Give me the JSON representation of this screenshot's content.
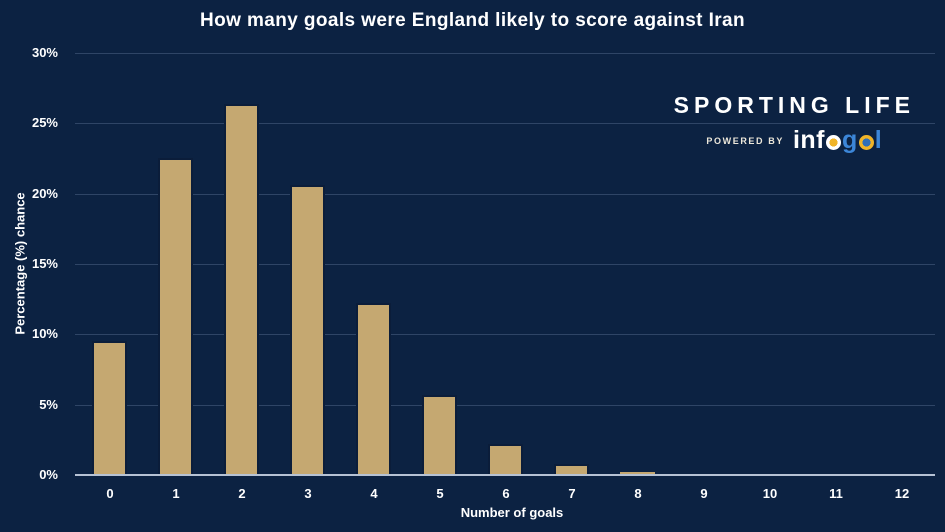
{
  "branding": {
    "brand_name": "SPORTING LIFE",
    "powered_by": "POWERED BY",
    "logo": {
      "part_inf": "inf",
      "part_g": "g",
      "part_l": "l"
    }
  },
  "chart_data": {
    "type": "bar",
    "title": "How many goals were England likely to score against Iran",
    "xlabel": "Number of goals",
    "ylabel": "Percentage (%) chance",
    "categories": [
      "0",
      "1",
      "2",
      "3",
      "4",
      "5",
      "6",
      "7",
      "8",
      "9",
      "10",
      "11",
      "12"
    ],
    "values": [
      9.5,
      22.5,
      26.4,
      20.6,
      12.2,
      5.7,
      2.2,
      0.8,
      0.2,
      0.1,
      0.07,
      0.05,
      0.03
    ],
    "ylim": [
      0,
      30
    ],
    "ytick_values": [
      0,
      5,
      10,
      15,
      20,
      25,
      30
    ],
    "ytick_labels": [
      "0%",
      "5%",
      "10%",
      "15%",
      "20%",
      "25%",
      "30%"
    ],
    "grid": true,
    "legend": false,
    "colors": {
      "background": "#0c2242",
      "bar": "#c5a871",
      "bar_edge": "#0b1d3a",
      "axis_line": "#b6c2d4",
      "text": "#ffffff",
      "logo_blue": "#3c86d8",
      "logo_gold": "#f0b428"
    }
  }
}
